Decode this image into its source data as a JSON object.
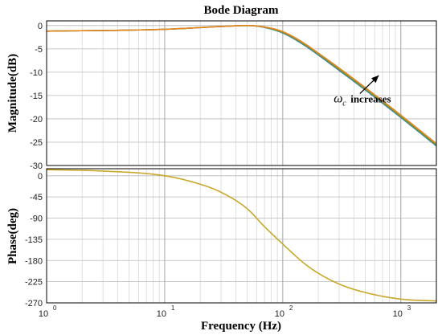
{
  "chart_data": {
    "type": "line",
    "title": "Bode Diagram",
    "xlabel": "Frequency  (Hz)",
    "xscale": "log",
    "xlim": [
      1,
      2000
    ],
    "x_ticks": [
      {
        "base": "10",
        "exp": "0"
      },
      {
        "base": "10",
        "exp": "1"
      },
      {
        "base": "10",
        "exp": "2"
      },
      {
        "base": "10",
        "exp": "3"
      }
    ],
    "grid": true,
    "panels": [
      {
        "name": "magnitude",
        "ylabel": "Magnitude(dB)",
        "ylim": [
          -30,
          1
        ],
        "y_ticks": [
          0,
          -5,
          -10,
          -15,
          -20,
          -25,
          -30
        ],
        "y_tick_labels": [
          "0",
          "-5",
          "-10",
          "-15",
          "-20",
          "-25",
          "-30"
        ],
        "series": [
          {
            "color": "#3a7ab8",
            "x": [
              1,
              10,
              30,
              50,
              70,
              100,
              150,
              200,
              300,
              500,
              1000,
              2000
            ],
            "y": [
              -1.2,
              -0.8,
              -0.2,
              0,
              -0.4,
              -1.6,
              -4.1,
              -6.3,
              -9.6,
              -13.8,
              -19.7,
              -25.8
            ]
          },
          {
            "color": "#6a9a3a",
            "x": [
              1,
              10,
              30,
              50,
              70,
              100,
              150,
              200,
              300,
              500,
              1000,
              2000
            ],
            "y": [
              -1.2,
              -0.8,
              -0.2,
              0,
              -0.35,
              -1.5,
              -3.9,
              -6.1,
              -9.4,
              -13.6,
              -19.5,
              -25.6
            ]
          },
          {
            "color": "#e8861a",
            "x": [
              1,
              10,
              30,
              50,
              70,
              100,
              150,
              200,
              300,
              500,
              1000,
              2000
            ],
            "y": [
              -1.2,
              -0.8,
              -0.2,
              0,
              -0.3,
              -1.3,
              -3.7,
              -5.9,
              -9.1,
              -13.3,
              -19.2,
              -25.3
            ]
          }
        ],
        "annotation": {
          "symbol": "ω",
          "subscript": "c",
          "text": "increases",
          "arrow_from": [
            450,
            -14.6
          ],
          "arrow_to": [
            650,
            -10.7
          ],
          "text_at": [
            270,
            -16.5
          ]
        }
      },
      {
        "name": "phase",
        "ylabel": "Phase(deg)",
        "ylim": [
          -270,
          15
        ],
        "y_ticks": [
          0,
          -45,
          -90,
          -135,
          -180,
          -225,
          -270
        ],
        "y_tick_labels": [
          "0",
          "-45",
          "-90",
          "-135",
          "-180",
          "-225",
          "-270"
        ],
        "series": [
          {
            "color": "#c8a82a",
            "x": [
              1,
              3,
              10,
              20,
              30,
              50,
              70,
              100,
              150,
              200,
              300,
              500,
              1000,
              2000
            ],
            "y": [
              13,
              10,
              0,
              -18,
              -35,
              -70,
              -108,
              -145,
              -185,
              -207,
              -230,
              -248,
              -262,
              -266
            ]
          }
        ]
      }
    ]
  }
}
